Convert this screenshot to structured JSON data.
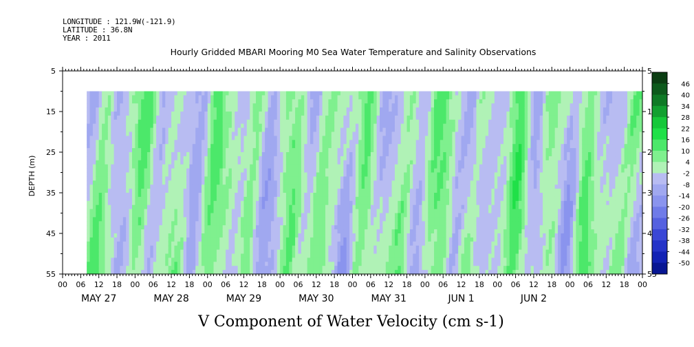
{
  "header": {
    "longitude": "LONGITUDE : 121.9W(-121.9)",
    "latitude": "LATITUDE : 36.8N",
    "year": "YEAR : 2011"
  },
  "chart_data": {
    "type": "heatmap",
    "title": "Hourly Gridded MBARI Mooring M0 Sea Water Temperature and Salinity Observations",
    "subtitle": "V Component of Water Velocity (cm s-1)",
    "ylabel": "DEPTH (m)",
    "ylim": [
      5,
      55
    ],
    "y_inverted": true,
    "y_ticks": [
      5,
      15,
      25,
      35,
      45,
      55
    ],
    "data_depth_range": [
      10,
      55
    ],
    "x_hour_ticks": [
      "00",
      "06",
      "12",
      "18",
      "00",
      "06",
      "12",
      "18",
      "00",
      "06",
      "12",
      "18",
      "00",
      "06",
      "12",
      "18",
      "00",
      "06",
      "12",
      "18",
      "00",
      "06",
      "12",
      "18",
      "00",
      "06",
      "12",
      "18",
      "00",
      "06",
      "12",
      "18",
      "00"
    ],
    "x_day_labels": [
      "MAY 27",
      "MAY 28",
      "MAY 29",
      "MAY 30",
      "MAY 31",
      "JUN  1",
      "JUN  2"
    ],
    "data_start_hour": 8,
    "colorbar": {
      "levels": [
        "46",
        "40",
        "34",
        "28",
        "22",
        "16",
        "10",
        "4",
        "-2",
        "-8",
        "-14",
        "-20",
        "-26",
        "-32",
        "-38",
        "-44",
        "-50"
      ],
      "colors": [
        "#0b3d12",
        "#0d5a1c",
        "#0f7a26",
        "#12a030",
        "#16c83a",
        "#20e048",
        "#4ce86a",
        "#7ff08e",
        "#b0f2b6",
        "#b8bcf2",
        "#a0a8f0",
        "#8a94ee",
        "#6f7be8",
        "#5561e0",
        "#3a47d6",
        "#2433c8",
        "#1222b4",
        "#081693"
      ]
    },
    "series_description_values": [
      {
        "day": "MAY 27",
        "hour": 12,
        "depth_profile": [
          -6,
          -4,
          -2,
          2,
          4,
          6,
          8,
          6,
          4,
          2
        ]
      },
      {
        "day": "MAY 28",
        "hour": 12,
        "depth_profile": [
          4,
          6,
          2,
          -2,
          -6,
          -4,
          2,
          4,
          6,
          4
        ]
      },
      {
        "day": "MAY 29",
        "hour": 0,
        "depth_profile": [
          -10,
          -8,
          -6,
          -4,
          -2,
          2,
          4,
          6,
          8,
          6
        ]
      },
      {
        "day": "MAY 30",
        "hour": 12,
        "depth_profile": [
          6,
          8,
          6,
          4,
          2,
          -2,
          -4,
          -6,
          -4,
          -2
        ]
      },
      {
        "day": "MAY 31",
        "hour": 12,
        "depth_profile": [
          4,
          6,
          8,
          10,
          6,
          2,
          -2,
          -4,
          -2,
          2
        ]
      },
      {
        "day": "JUN  1",
        "hour": 12,
        "depth_profile": [
          10,
          12,
          14,
          10,
          6,
          2,
          -2,
          4,
          6,
          8
        ]
      },
      {
        "day": "JUN  2",
        "hour": 12,
        "depth_profile": [
          8,
          10,
          6,
          2,
          -2,
          -4,
          -6,
          -2,
          2,
          4
        ]
      }
    ]
  }
}
